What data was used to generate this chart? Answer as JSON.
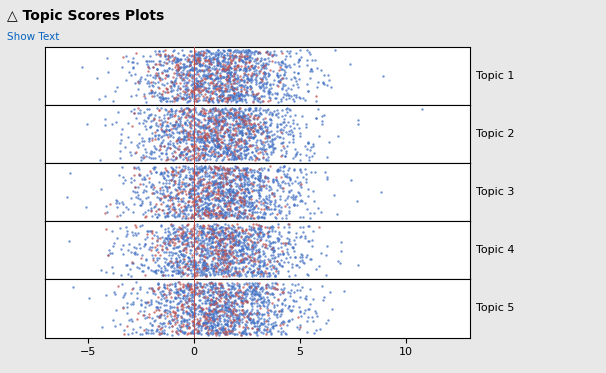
{
  "title": "Topic Scores Plots",
  "show_text_label": "Show Text",
  "topics": [
    "Topic 1",
    "Topic 2",
    "Topic 3",
    "Topic 4",
    "Topic 5"
  ],
  "xlim": [
    -7,
    13
  ],
  "xticks": [
    -5,
    0,
    5,
    10
  ],
  "blue_color": "#4472C4",
  "red_color": "#C0504D",
  "vline_color": "#C0504D",
  "background_color": "#E8E8E8",
  "plot_background": "#FFFFFF",
  "n_blue": 1200,
  "n_red": 280,
  "blue_mean": 1.2,
  "blue_std": 2.0,
  "red_mean": 0.8,
  "red_std": 1.6,
  "dot_size": 3,
  "dot_alpha": 0.75,
  "seed_base": 42,
  "title_fontsize": 10,
  "label_fontsize": 8,
  "topic_fontsize": 8
}
